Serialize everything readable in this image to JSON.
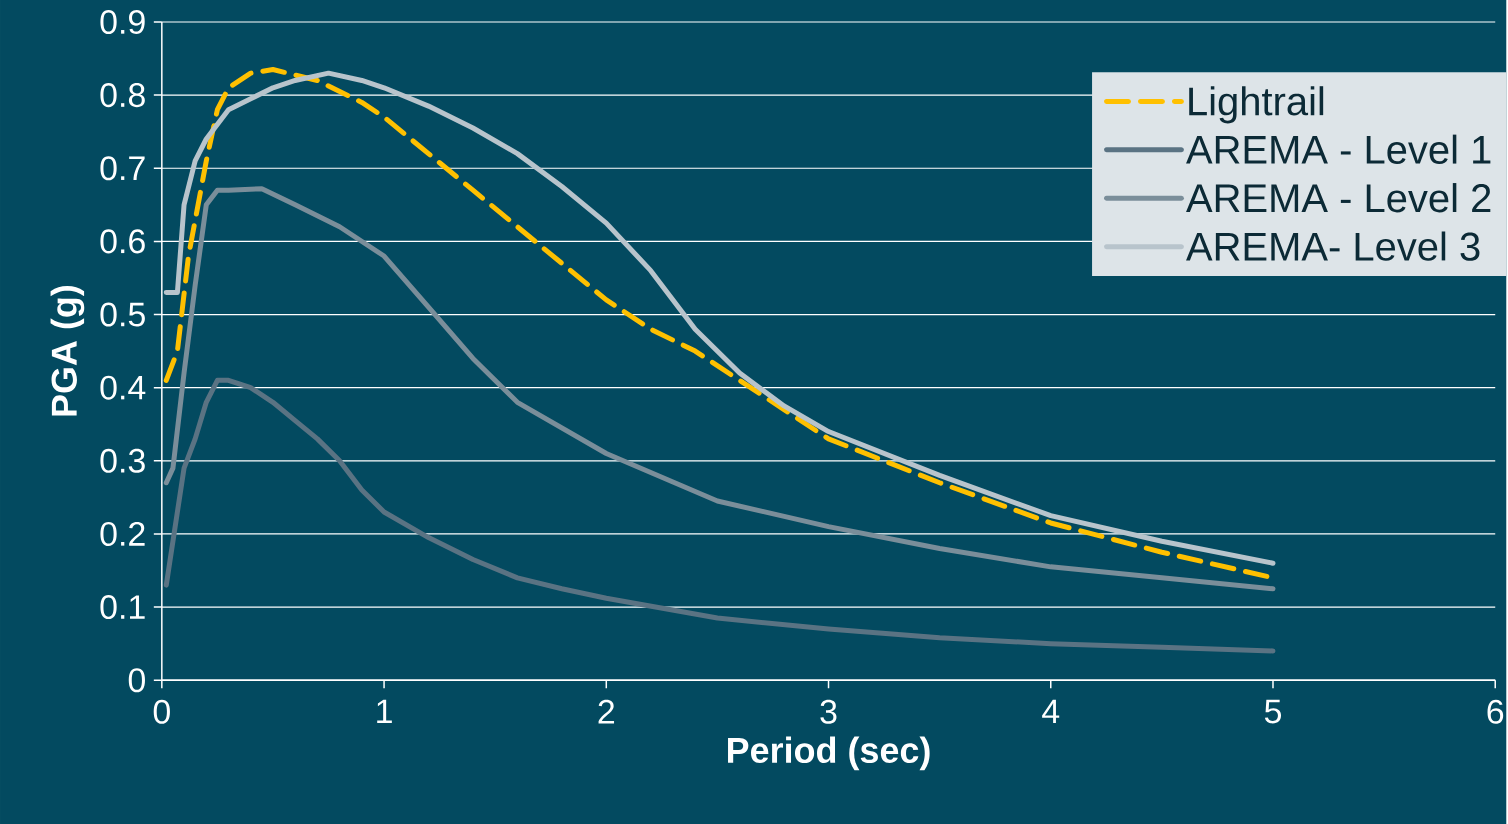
{
  "chart_data": {
    "type": "line",
    "xlabel": "Period (sec)",
    "ylabel": "PGA (g)",
    "xlim": [
      0,
      6
    ],
    "xticks": [
      0,
      1,
      2,
      3,
      4,
      5,
      6
    ],
    "ylim": [
      0,
      0.9
    ],
    "yticks": [
      0,
      0.1,
      0.2,
      0.3,
      0.4,
      0.5,
      0.6,
      0.7,
      0.8,
      0.9
    ],
    "grid": "y",
    "legend": "top right",
    "series": [
      {
        "name": "Lightrail",
        "color": "#ffc000",
        "line_style": "dashed",
        "x": [
          0.02,
          0.07,
          0.12,
          0.2,
          0.25,
          0.3,
          0.4,
          0.5,
          0.7,
          0.9,
          1.0,
          1.2,
          1.4,
          1.6,
          1.8,
          2.0,
          2.2,
          2.4,
          2.6,
          2.8,
          3,
          3.5,
          4,
          4.5,
          5
        ],
        "values": [
          0.41,
          0.45,
          0.58,
          0.71,
          0.78,
          0.81,
          0.83,
          0.835,
          0.82,
          0.79,
          0.77,
          0.72,
          0.67,
          0.62,
          0.57,
          0.52,
          0.48,
          0.45,
          0.41,
          0.37,
          0.33,
          0.27,
          0.215,
          0.175,
          0.14
        ]
      },
      {
        "name": "AREMA - Level 1",
        "color": "#5a7383",
        "x": [
          0.02,
          0.1,
          0.15,
          0.2,
          0.25,
          0.3,
          0.4,
          0.5,
          0.6,
          0.7,
          0.8,
          0.9,
          1.0,
          1.2,
          1.4,
          1.6,
          1.8,
          2.0,
          2.5,
          3,
          3.5,
          4,
          4.5,
          5
        ],
        "values": [
          0.13,
          0.29,
          0.33,
          0.38,
          0.41,
          0.41,
          0.4,
          0.38,
          0.355,
          0.33,
          0.3,
          0.26,
          0.23,
          0.195,
          0.165,
          0.14,
          0.125,
          0.112,
          0.085,
          0.07,
          0.058,
          0.05,
          0.045,
          0.04
        ]
      },
      {
        "name": "AREMA - Level 2",
        "color": "#7a8e9a",
        "x": [
          0.02,
          0.05,
          0.1,
          0.15,
          0.2,
          0.25,
          0.3,
          0.45,
          0.6,
          0.8,
          1.0,
          1.2,
          1.4,
          1.6,
          1.8,
          2.0,
          2.5,
          3,
          3.5,
          4,
          4.5,
          5
        ],
        "values": [
          0.27,
          0.29,
          0.42,
          0.54,
          0.65,
          0.67,
          0.67,
          0.672,
          0.65,
          0.62,
          0.58,
          0.51,
          0.44,
          0.38,
          0.345,
          0.31,
          0.245,
          0.21,
          0.18,
          0.155,
          0.14,
          0.125
        ]
      },
      {
        "name": "AREMA- Level 3",
        "color": "#b8c4cc",
        "x": [
          0.02,
          0.07,
          0.1,
          0.15,
          0.2,
          0.3,
          0.4,
          0.5,
          0.6,
          0.75,
          0.9,
          1.0,
          1.2,
          1.4,
          1.6,
          1.8,
          2.0,
          2.2,
          2.4,
          2.6,
          2.8,
          3,
          3.5,
          4,
          4.5,
          5
        ],
        "values": [
          0.53,
          0.53,
          0.65,
          0.71,
          0.74,
          0.78,
          0.795,
          0.81,
          0.82,
          0.83,
          0.82,
          0.81,
          0.785,
          0.755,
          0.72,
          0.675,
          0.625,
          0.56,
          0.48,
          0.42,
          0.375,
          0.34,
          0.28,
          0.225,
          0.19,
          0.16
        ]
      }
    ]
  }
}
